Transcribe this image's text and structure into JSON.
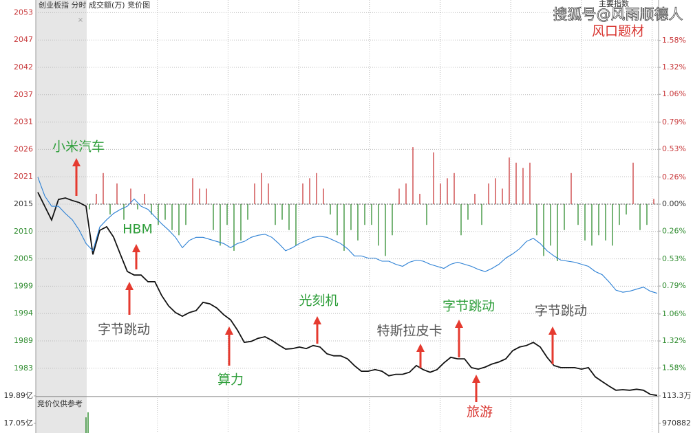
{
  "chart_data": [
    {
      "type": "line",
      "title": "创业板指  分时 成交额(万) 竞价图",
      "overlay_label": "主要指数",
      "watermark": "搜狐号@风雨顺德人",
      "subtitle": "风口题材",
      "up_color": "#c8383a",
      "down_color": "#2e8b2e",
      "grid": true,
      "ylim": [
        1978.0,
        2055.0
      ],
      "yticks": [
        {
          "value": 2052.54,
          "label": "2053"
        },
        {
          "value": 2047.22,
          "label": "2047"
        },
        {
          "value": 2041.9,
          "label": "2042"
        },
        {
          "value": 2036.58,
          "label": "2037"
        },
        {
          "value": 2031.26,
          "label": "2031"
        },
        {
          "value": 2025.94,
          "label": "2026"
        },
        {
          "value": 2020.62,
          "label": "2021"
        },
        {
          "value": 2015.3,
          "label": "2015"
        },
        {
          "value": 2009.98,
          "label": "2010"
        },
        {
          "value": 2004.66,
          "label": "2005"
        },
        {
          "value": 1999.34,
          "label": "1999"
        },
        {
          "value": 1994.02,
          "label": "1994"
        },
        {
          "value": 1988.7,
          "label": "1989"
        },
        {
          "value": 1983.38,
          "label": "1983"
        }
      ],
      "y2lim": [
        -1.85,
        1.97
      ],
      "y2ticks": [
        {
          "value": 1.58,
          "label": "1.58%"
        },
        {
          "value": 1.32,
          "label": "1.32%"
        },
        {
          "value": 1.06,
          "label": "1.06%"
        },
        {
          "value": 0.79,
          "label": "0.79%"
        },
        {
          "value": 0.53,
          "label": "0.53%"
        },
        {
          "value": 0.26,
          "label": "0.26%"
        },
        {
          "value": 0,
          "label": "0.00%"
        },
        {
          "value": -0.26,
          "label": "0.26%"
        },
        {
          "value": -0.53,
          "label": "0.53%"
        },
        {
          "value": -0.79,
          "label": "0.79%"
        },
        {
          "value": -1.06,
          "label": "1.06%"
        },
        {
          "value": -1.32,
          "label": "1.32%"
        },
        {
          "value": -1.58,
          "label": "1.58%"
        }
      ],
      "series": [
        {
          "color": "#111111",
          "values": [
            2017.6,
            2014.9,
            2012.2,
            2016.2,
            2016.5,
            2016.0,
            2015.6,
            2014.9,
            2005.5,
            2010.2,
            2010.9,
            2008.9,
            2005.5,
            2002.2,
            2001.5,
            2001.5,
            2000.2,
            2000.2,
            1997.5,
            1995.5,
            1994.2,
            1993.5,
            1994.2,
            1994.6,
            1996.2,
            1995.9,
            1995.1,
            1993.8,
            1992.8,
            1990.8,
            1988.4,
            1988.6,
            1989.2,
            1989.5,
            1988.8,
            1987.9,
            1987.1,
            1987.2,
            1987.5,
            1987.2,
            1987.8,
            1987.5,
            1986.2,
            1985.8,
            1985.8,
            1985.2,
            1983.9,
            1982.8,
            1982.8,
            1983.1,
            1982.8,
            1981.9,
            1982.2,
            1982.2,
            1982.6,
            1983.9,
            1983.1,
            1982.6,
            1983.1,
            1984.4,
            1985.5,
            1985.2,
            1985.2,
            1983.5,
            1983.2,
            1983.6,
            1984.2,
            1984.6,
            1985.2,
            1986.8,
            1987.5,
            1987.8,
            1988.4,
            1987.5,
            1985.5,
            1983.9,
            1983.5,
            1983.5,
            1983.5,
            1983.2,
            1983.5,
            1981.7,
            1980.8,
            1979.9,
            1979.1,
            1979.2,
            1979.1,
            1979.3,
            1979.1,
            1978.3,
            1978.1
          ]
        },
        {
          "color": "#2a7fd4",
          "axis": "y2",
          "values": [
            0.26,
            0.08,
            -0.02,
            -0.02,
            -0.09,
            -0.15,
            -0.25,
            -0.38,
            -0.45,
            -0.22,
            -0.15,
            -0.09,
            -0.05,
            -0.02,
            0.05,
            -0.02,
            -0.05,
            -0.12,
            -0.19,
            -0.25,
            -0.32,
            -0.42,
            -0.35,
            -0.32,
            -0.32,
            -0.34,
            -0.36,
            -0.38,
            -0.42,
            -0.38,
            -0.36,
            -0.32,
            -0.3,
            -0.29,
            -0.32,
            -0.38,
            -0.45,
            -0.42,
            -0.38,
            -0.35,
            -0.32,
            -0.31,
            -0.32,
            -0.35,
            -0.38,
            -0.43,
            -0.5,
            -0.5,
            -0.52,
            -0.52,
            -0.55,
            -0.55,
            -0.58,
            -0.6,
            -0.56,
            -0.54,
            -0.55,
            -0.58,
            -0.6,
            -0.62,
            -0.58,
            -0.56,
            -0.58,
            -0.6,
            -0.63,
            -0.65,
            -0.62,
            -0.58,
            -0.52,
            -0.48,
            -0.43,
            -0.36,
            -0.33,
            -0.38,
            -0.45,
            -0.5,
            -0.54,
            -0.55,
            -0.56,
            -0.58,
            -0.6,
            -0.65,
            -0.68,
            -0.75,
            -0.83,
            -0.85,
            -0.84,
            -0.82,
            -0.8,
            -0.84,
            -0.86
          ]
        }
      ],
      "bars": {
        "axis": "y2",
        "values": [
          -0.05,
          0.1,
          0.3,
          -0.1,
          0.2,
          -0.15,
          0.15,
          -0.05,
          0.1,
          -0.1,
          -0.2,
          -0.15,
          -0.25,
          -0.3,
          -0.2,
          0.25,
          0.15,
          0.15,
          -0.25,
          -0.4,
          -0.2,
          -0.45,
          -0.35,
          -0.15,
          0.2,
          0.3,
          0.2,
          -0.2,
          -0.15,
          -0.25,
          -0.4,
          0.2,
          0.25,
          0.3,
          0.15,
          -0.1,
          -0.3,
          -0.45,
          -0.25,
          -0.35,
          -0.2,
          -0.2,
          -0.4,
          -0.5,
          -0.3,
          0.15,
          0.2,
          0.55,
          0.1,
          -0.2,
          0.5,
          0.2,
          0.25,
          0.3,
          -0.3,
          -0.15,
          0.1,
          -0.2,
          0.2,
          0.25,
          0.15,
          0.45,
          0.4,
          0.35,
          0.4,
          -0.3,
          -0.5,
          -0.4,
          -0.55,
          -0.25,
          0.3,
          -0.2,
          -0.35,
          -0.4,
          -0.3,
          -0.35,
          -0.4,
          -0.2,
          -0.1,
          0.4,
          -0.25,
          -0.2,
          0.05
        ]
      },
      "annotations": [
        {
          "text": "小米汽车",
          "color": "#2e9e3a"
        },
        {
          "text": "HBM",
          "color": "#2e9e3a"
        },
        {
          "text": "字节跳动",
          "color": "#555555"
        },
        {
          "text": "算力",
          "color": "#2e9e3a"
        },
        {
          "text": "光刻机",
          "color": "#2e9e3a"
        },
        {
          "text": "特斯拉皮卡",
          "color": "#555555"
        },
        {
          "text": "字节跳动",
          "color": "#2e9e3a"
        },
        {
          "text": "旅游",
          "color": "#d8332e"
        },
        {
          "text": "字节跳动",
          "color": "#555555"
        }
      ]
    },
    {
      "type": "bar",
      "title": "竞价仅供参考",
      "color": "#2e8b2e",
      "ylim": [
        16.05,
        19.89
      ],
      "yticks": [
        {
          "value": 19.89,
          "label": "19.89亿"
        },
        {
          "value": 17.05,
          "label": "17.05亿"
        }
      ],
      "y2lim": [
        914140,
        1133000
      ],
      "y2ticks": [
        {
          "value": 1133000,
          "label": "113.3万"
        },
        970882
      ],
      "values": [
        17.67,
        18.19
      ]
    }
  ]
}
